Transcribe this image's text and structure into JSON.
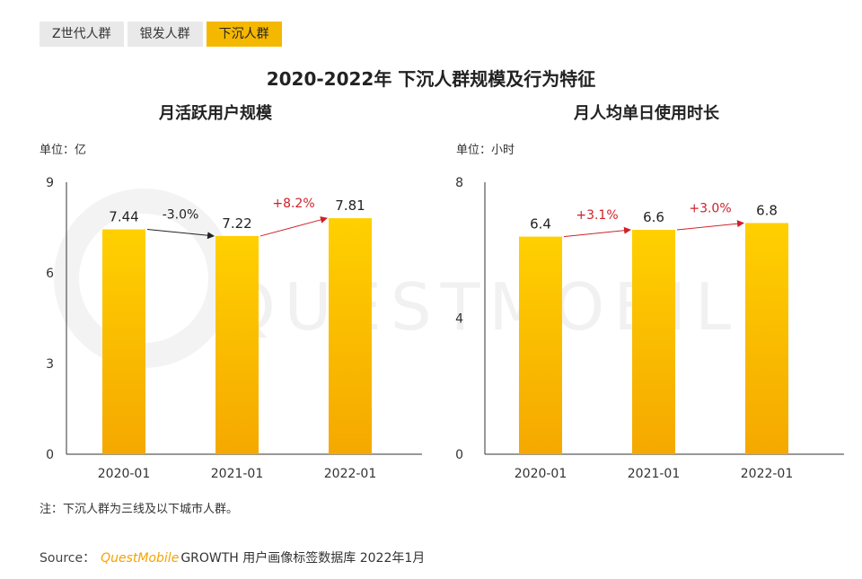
{
  "tabs": [
    {
      "label": "Z世代人群",
      "active": false
    },
    {
      "label": "银发人群",
      "active": false
    },
    {
      "label": "下沉人群",
      "active": true
    }
  ],
  "title": "2020-2022年 下沉人群规模及行为特征",
  "watermark": "QUESTMOBILE",
  "colors": {
    "bar_top": "#ffd000",
    "bar_bottom": "#f5a800",
    "up_arrow": "#d0202a",
    "down_arrow": "#222222",
    "tab_active": "#f5b800"
  },
  "chart_data": [
    {
      "type": "bar",
      "title": "月活跃用户规模",
      "unit": "单位：亿",
      "categories": [
        "2020-01",
        "2021-01",
        "2022-01"
      ],
      "values": [
        7.44,
        7.22,
        7.81
      ],
      "value_labels": [
        "7.44",
        "7.22",
        "7.81"
      ],
      "ylim": [
        0,
        9
      ],
      "yticks": [
        0,
        3,
        6,
        9
      ],
      "changes": [
        {
          "label": "-3.0%",
          "direction": "down"
        },
        {
          "label": "+8.2%",
          "direction": "up"
        }
      ]
    },
    {
      "type": "bar",
      "title": "月人均单日使用时长",
      "unit": "单位：小时",
      "categories": [
        "2020-01",
        "2021-01",
        "2022-01"
      ],
      "values": [
        6.4,
        6.6,
        6.8
      ],
      "value_labels": [
        "6.4",
        "6.6",
        "6.8"
      ],
      "ylim": [
        0,
        8
      ],
      "yticks": [
        0,
        4,
        8
      ],
      "changes": [
        {
          "label": "+3.1%",
          "direction": "up"
        },
        {
          "label": "+3.0%",
          "direction": "up"
        }
      ]
    }
  ],
  "note": "注：下沉人群为三线及以下城市人群。",
  "source": {
    "prefix": "Source：",
    "brand": "QuestMobile",
    "rest": "GROWTH 用户画像标签数据库 2022年1月"
  }
}
